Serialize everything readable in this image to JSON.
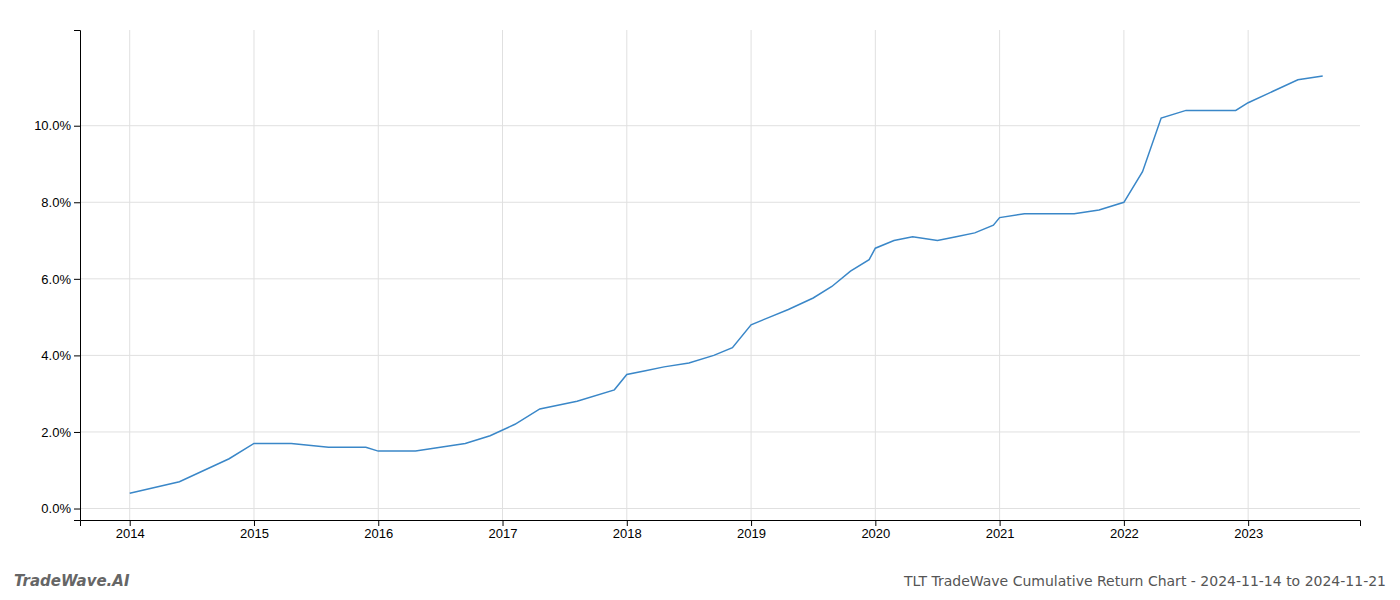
{
  "chart_data": {
    "type": "line",
    "title": "TLT TradeWave Cumulative Return Chart - 2024-11-14 to 2024-11-21",
    "annotations": [
      "TradeWave.AI"
    ],
    "color": "#3a87c8",
    "x": [
      2014.0,
      2014.4,
      2014.8,
      2015.0,
      2015.3,
      2015.6,
      2015.9,
      2016.0,
      2016.3,
      2016.5,
      2016.7,
      2016.9,
      2017.1,
      2017.3,
      2017.6,
      2017.9,
      2018.0,
      2018.15,
      2018.3,
      2018.5,
      2018.7,
      2018.85,
      2019.0,
      2019.15,
      2019.3,
      2019.5,
      2019.65,
      2019.8,
      2019.95,
      2020.0,
      2020.15,
      2020.3,
      2020.5,
      2020.65,
      2020.8,
      2020.95,
      2021.0,
      2021.2,
      2021.4,
      2021.6,
      2021.8,
      2022.0,
      2022.15,
      2022.3,
      2022.5,
      2022.7,
      2022.9,
      2023.0,
      2023.2,
      2023.4,
      2023.6
    ],
    "values": [
      0.004,
      0.007,
      0.013,
      0.017,
      0.017,
      0.016,
      0.016,
      0.015,
      0.015,
      0.016,
      0.017,
      0.019,
      0.022,
      0.026,
      0.028,
      0.031,
      0.035,
      0.036,
      0.037,
      0.038,
      0.04,
      0.042,
      0.048,
      0.05,
      0.052,
      0.055,
      0.058,
      0.062,
      0.065,
      0.068,
      0.07,
      0.071,
      0.07,
      0.071,
      0.072,
      0.074,
      0.076,
      0.077,
      0.077,
      0.077,
      0.078,
      0.08,
      0.088,
      0.102,
      0.104,
      0.104,
      0.104,
      0.106,
      0.109,
      0.112,
      0.113
    ],
    "xlim": [
      2013.6,
      2023.9
    ],
    "ylim": [
      -0.003,
      0.125
    ],
    "xticks": [
      2014,
      2015,
      2016,
      2017,
      2018,
      2019,
      2020,
      2021,
      2022,
      2023
    ],
    "yticks": [
      {
        "value": 0.0,
        "label": "0.0%"
      },
      {
        "value": 0.02,
        "label": "2.0%"
      },
      {
        "value": 0.04,
        "label": "4.0%"
      },
      {
        "value": 0.06,
        "label": "6.0%"
      },
      {
        "value": 0.08,
        "label": "8.0%"
      },
      {
        "value": 0.1,
        "label": "10.0%"
      }
    ],
    "grid": true
  }
}
